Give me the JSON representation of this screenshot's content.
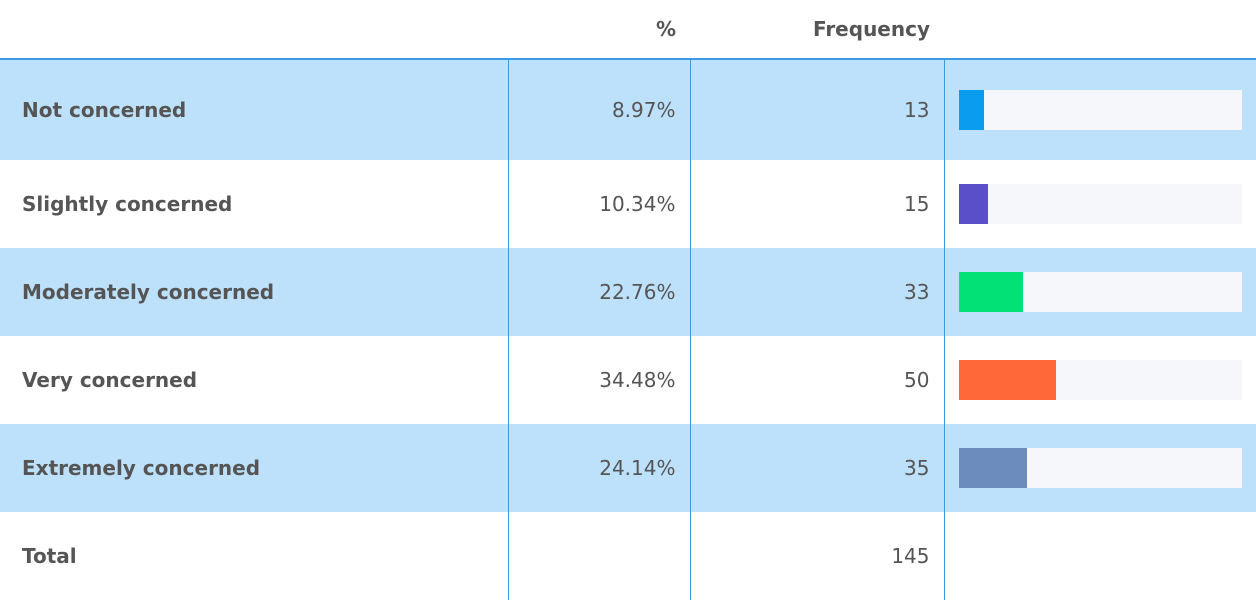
{
  "table": {
    "header": [
      "%",
      "Frequency"
    ],
    "rows": [
      {
        "label": "Not concerned",
        "percent": 8.97,
        "percent_label": "8.97%",
        "frequency": 13,
        "color": "#0a9cef"
      },
      {
        "label": "Slightly concerned",
        "percent": 10.34,
        "percent_label": "10.34%",
        "frequency": 15,
        "color": "#5a4fc8"
      },
      {
        "label": "Moderately concerned",
        "percent": 22.76,
        "percent_label": "22.76%",
        "frequency": 33,
        "color": "#00e276"
      },
      {
        "label": "Very concerned",
        "percent": 34.48,
        "percent_label": "34.48%",
        "frequency": 50,
        "color": "#ff6937"
      },
      {
        "label": "Extremely concerned",
        "percent": 24.14,
        "percent_label": "24.14%",
        "frequency": 35,
        "color": "#6c8cbe"
      }
    ],
    "total": {
      "label": "Total",
      "frequency": 145
    }
  }
}
